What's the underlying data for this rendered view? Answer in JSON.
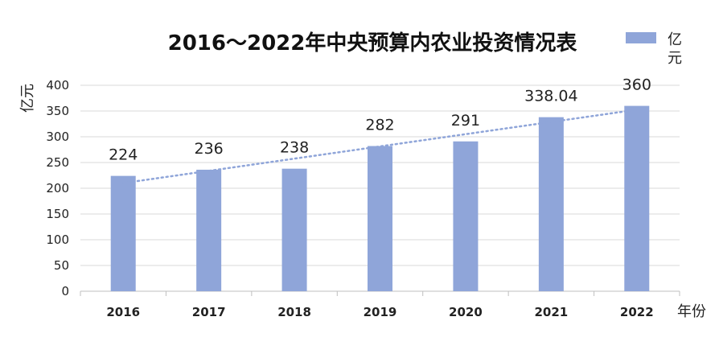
{
  "chart_data": {
    "type": "bar",
    "title": "2016～2022年中央预算内农业投资情况表",
    "categories": [
      "2016",
      "2017",
      "2018",
      "2019",
      "2020",
      "2021",
      "2022"
    ],
    "values": [
      224,
      236,
      238,
      282,
      291,
      338.04,
      360
    ],
    "data_labels": [
      "224",
      "236",
      "238",
      "282",
      "291",
      "338.04",
      "360"
    ],
    "series_name": "亿元",
    "legend_line1": "亿",
    "legend_line2": "元",
    "ylabel": "亿元",
    "xlabel": "年份",
    "ylim": [
      0,
      400
    ],
    "yticks": [
      0,
      50,
      100,
      150,
      200,
      250,
      300,
      350,
      400
    ],
    "trendline": "linear",
    "legend": "top-right",
    "grid": true,
    "bar_color": "#8fa5d9",
    "trend_color": "#8fa5d9",
    "grid_color": "#d9d9d9"
  }
}
